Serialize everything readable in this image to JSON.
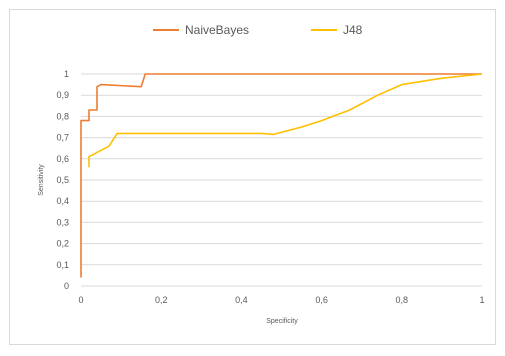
{
  "chart_data": {
    "type": "line",
    "title": "",
    "xlabel": "Specificity",
    "ylabel": "Sensitivity",
    "xlim": [
      0,
      1
    ],
    "ylim": [
      0,
      1
    ],
    "x_ticks": [
      "0",
      "0,2",
      "0,4",
      "0,6",
      "0,8",
      "1"
    ],
    "y_ticks": [
      "0",
      "0,1",
      "0,2",
      "0,3",
      "0,4",
      "0,5",
      "0,6",
      "0,7",
      "0,8",
      "0,9",
      "1"
    ],
    "grid": "horizontal",
    "legend_position": "top",
    "series": [
      {
        "name": "NaiveBayes",
        "color": "#ED7D31",
        "points": [
          [
            0,
            0.04
          ],
          [
            0,
            0.78
          ],
          [
            0.02,
            0.78
          ],
          [
            0.02,
            0.83
          ],
          [
            0.04,
            0.83
          ],
          [
            0.04,
            0.94
          ],
          [
            0.05,
            0.95
          ],
          [
            0.15,
            0.94
          ],
          [
            0.16,
            1.0
          ],
          [
            1.0,
            1.0
          ]
        ]
      },
      {
        "name": "J48",
        "color": "#FFC000",
        "points": [
          [
            0.02,
            0.56
          ],
          [
            0.02,
            0.61
          ],
          [
            0.04,
            0.63
          ],
          [
            0.07,
            0.66
          ],
          [
            0.09,
            0.72
          ],
          [
            0.12,
            0.72
          ],
          [
            0.45,
            0.72
          ],
          [
            0.48,
            0.715
          ],
          [
            0.55,
            0.75
          ],
          [
            0.6,
            0.78
          ],
          [
            0.67,
            0.83
          ],
          [
            0.74,
            0.9
          ],
          [
            0.8,
            0.95
          ],
          [
            0.9,
            0.98
          ],
          [
            1.0,
            1.0
          ]
        ]
      }
    ]
  }
}
